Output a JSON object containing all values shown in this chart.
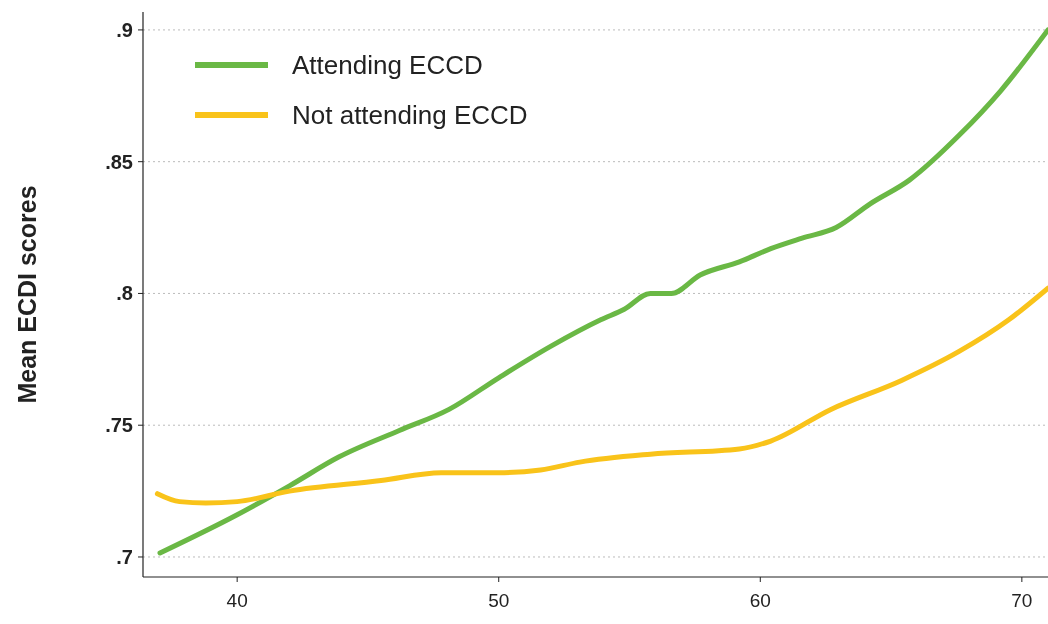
{
  "chart_data": {
    "type": "line",
    "ylabel": "Mean ECDI scores",
    "xlim": [
      36.4,
      71
    ],
    "xticks": [
      40,
      50,
      60,
      70
    ],
    "ylim": [
      0.6924,
      0.9068
    ],
    "yticks": [
      {
        "value": 0.7,
        "label": ".7"
      },
      {
        "value": 0.75,
        "label": ".75"
      },
      {
        "value": 0.8,
        "label": ".8"
      },
      {
        "value": 0.85,
        "label": ".85"
      },
      {
        "value": 0.9,
        "label": ".9"
      }
    ],
    "grid": "y",
    "legend": "top left",
    "line_style": "solid",
    "marker": "none",
    "series": [
      {
        "name": "Attending ECCD",
        "color": "#6ab845",
        "x": [
          37.05,
          40,
          42,
          43.9,
          46.2,
          48.1,
          50,
          52,
          53.9,
          54.8,
          55.8,
          56.6,
          57.7,
          59.2,
          60.4,
          61.6,
          62.9,
          64.2,
          65.7,
          67.6,
          69.2,
          71
        ],
        "values": [
          0.7015,
          0.716,
          0.727,
          0.738,
          0.748,
          0.756,
          0.768,
          0.78,
          0.79,
          0.794,
          0.8,
          0.8,
          0.807,
          0.812,
          0.817,
          0.821,
          0.825,
          0.834,
          0.843,
          0.86,
          0.877,
          0.9
        ]
      },
      {
        "name": "Not attending ECCD",
        "color": "#f9c31a",
        "x": [
          36.95,
          37.8,
          38.8,
          40,
          42,
          45.5,
          47.8,
          50,
          51.6,
          53.1,
          55.8,
          59.2,
          60.4,
          62.7,
          65.4,
          67.6,
          69.5,
          71
        ],
        "values": [
          0.724,
          0.721,
          0.7205,
          0.721,
          0.725,
          0.729,
          0.732,
          0.732,
          0.733,
          0.736,
          0.739,
          0.741,
          0.744,
          0.756,
          0.767,
          0.778,
          0.79,
          0.802
        ]
      }
    ]
  }
}
